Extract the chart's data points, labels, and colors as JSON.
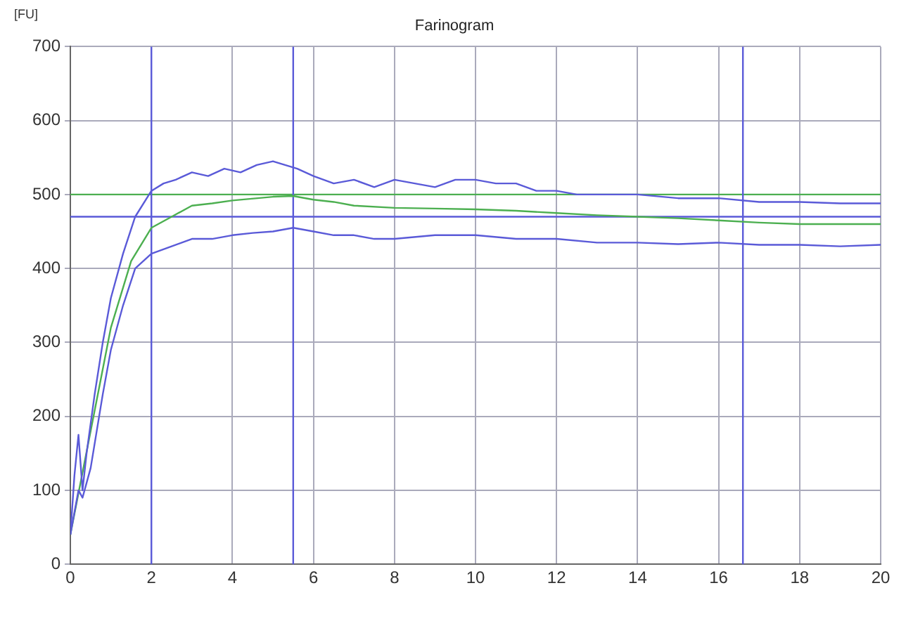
{
  "chart_data": {
    "type": "line",
    "title": "Farinogram",
    "ylabel": "[FU]",
    "xlim": [
      0,
      20
    ],
    "xticks": [
      0,
      2,
      4,
      6,
      8,
      10,
      12,
      14,
      16,
      18,
      20
    ],
    "ylim": [
      0,
      700
    ],
    "yticks": [
      0,
      100,
      200,
      300,
      400,
      500,
      600,
      700
    ],
    "grid": true,
    "legend": false,
    "marker": "none",
    "line_style": "solid",
    "series": [
      {
        "color": "#5a5ad8",
        "x": [
          0,
          0.1,
          0.2,
          0.3,
          0.4,
          0.5,
          0.6,
          0.8,
          1.0,
          1.3,
          1.6,
          2,
          2.3,
          2.6,
          3,
          3.4,
          3.8,
          4.2,
          4.6,
          5,
          5.3,
          5.6,
          5.8,
          6,
          6.5,
          7,
          7.5,
          8,
          8.5,
          9,
          9.5,
          10,
          10.5,
          11,
          11.5,
          12,
          12.5,
          13,
          14,
          15,
          16,
          17,
          18,
          19,
          20
        ],
        "values": [
          40,
          120,
          175,
          100,
          150,
          190,
          230,
          300,
          360,
          420,
          470,
          505,
          515,
          520,
          530,
          525,
          535,
          530,
          540,
          545,
          540,
          535,
          530,
          525,
          515,
          520,
          510,
          520,
          515,
          510,
          520,
          520,
          515,
          515,
          505,
          505,
          500,
          500,
          500,
          495,
          495,
          490,
          490,
          488,
          488
        ]
      },
      {
        "color": "#5a5ad8",
        "x": [
          0,
          0.2,
          0.3,
          0.5,
          0.8,
          1.0,
          1.3,
          1.6,
          2,
          2.5,
          3,
          3.5,
          4,
          4.5,
          5,
          5.5,
          6,
          6.5,
          7,
          7.5,
          8,
          9,
          10,
          11,
          12,
          13,
          14,
          15,
          16,
          17,
          18,
          19,
          20
        ],
        "values": [
          40,
          100,
          90,
          130,
          230,
          290,
          350,
          400,
          420,
          430,
          440,
          440,
          445,
          448,
          450,
          455,
          450,
          445,
          445,
          440,
          440,
          445,
          445,
          440,
          440,
          435,
          435,
          433,
          435,
          432,
          432,
          430,
          432
        ]
      },
      {
        "color": "#4caf50",
        "x": [
          0,
          0.5,
          1,
          1.5,
          2,
          2.5,
          3,
          3.5,
          4,
          5,
          5.5,
          6,
          6.5,
          7,
          8,
          9,
          10,
          11,
          12,
          13,
          14,
          15,
          16,
          17,
          18,
          19,
          20
        ],
        "values": [
          40,
          180,
          320,
          410,
          455,
          470,
          485,
          488,
          492,
          497,
          498,
          493,
          490,
          485,
          482,
          481,
          480,
          478,
          475,
          472,
          470,
          468,
          465,
          462,
          460,
          460,
          460
        ]
      }
    ],
    "ref_lines": [
      {
        "axis": "y",
        "value": 500,
        "color": "#4caf50"
      },
      {
        "axis": "y",
        "value": 470,
        "color": "#5a5ad8"
      },
      {
        "axis": "x",
        "value": 2,
        "color": "#5a5ad8"
      },
      {
        "axis": "x",
        "value": 5.5,
        "color": "#5a5ad8"
      },
      {
        "axis": "x",
        "value": 16.6,
        "color": "#5a5ad8"
      }
    ]
  }
}
